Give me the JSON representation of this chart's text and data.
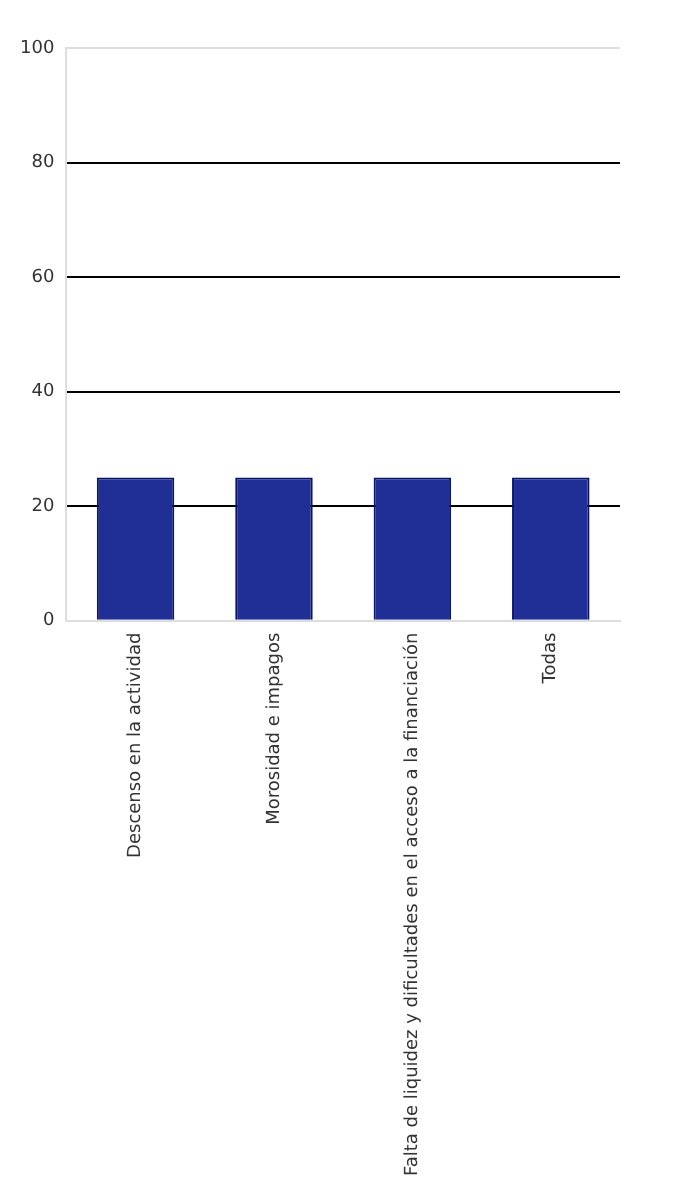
{
  "chart_data": {
    "type": "bar",
    "categories": [
      "Descenso en la actividad",
      "Morosidad e impagos",
      "Falta de liquidez y dificultades en el acceso a la financiación",
      "Todas"
    ],
    "values": [
      25,
      25,
      25,
      25
    ],
    "color": "#1f2f96",
    "ylim": [
      0,
      100
    ],
    "yticks": [
      0,
      20,
      40,
      60,
      80,
      100
    ],
    "grid": "y",
    "legend": false
  }
}
